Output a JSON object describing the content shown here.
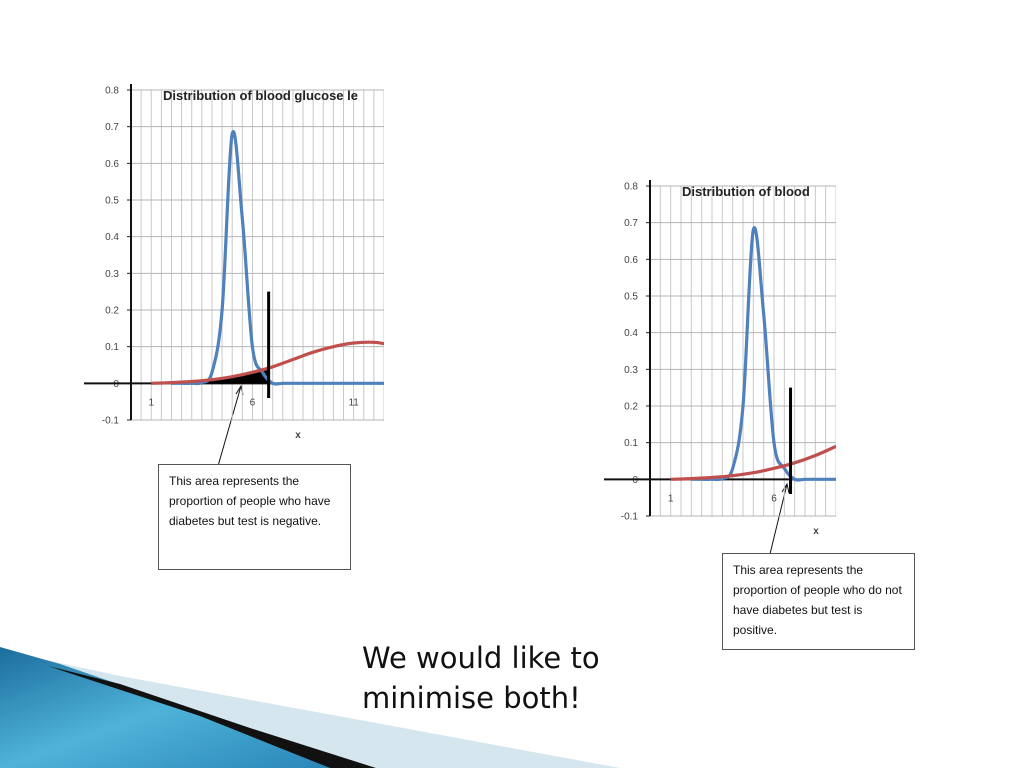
{
  "slide": {
    "text": "We would like to minimise both!"
  },
  "callouts": {
    "left": "This area represents the proportion of people who have diabetes but test is negative.",
    "right": "This area represents the proportion of people who do not have diabetes but test is positive."
  },
  "chart_data": [
    {
      "type": "line",
      "title": "Distribution of blood glucose le",
      "xlabel": "x",
      "ylabel": "",
      "xlim": [
        0,
        12.5
      ],
      "ylim": [
        -0.1,
        0.8
      ],
      "yticks": [
        -0.1,
        0,
        0.1,
        0.2,
        0.3,
        0.4,
        0.5,
        0.6,
        0.7,
        0.8
      ],
      "ytick_labels": [
        "-0.1",
        "0",
        "0.1",
        "0.2",
        "0.3",
        "0.4",
        "0.5",
        "0.6",
        "0.7",
        "0.8"
      ],
      "xticks": [
        1,
        6,
        11
      ],
      "xtick_labels": [
        "1",
        "6",
        "11"
      ],
      "grid": true,
      "threshold": 6.8,
      "shaded_region": "area under red curve left of threshold",
      "series": [
        {
          "color": "#4f81bd",
          "x": [
            2,
            2.5,
            3,
            3.5,
            4,
            4.5,
            5,
            5.5,
            6,
            6.5,
            7,
            7.5,
            8,
            10,
            12.5
          ],
          "y": [
            0,
            0,
            0,
            0.002,
            0.03,
            0.2,
            0.68,
            0.45,
            0.1,
            0.03,
            0,
            0,
            0,
            0,
            0
          ]
        },
        {
          "color": "#c0504d",
          "x": [
            1,
            2,
            3,
            4,
            5,
            6,
            7,
            8,
            9,
            10,
            11,
            12,
            12.5
          ],
          "y": [
            0,
            0.002,
            0.005,
            0.01,
            0.018,
            0.03,
            0.045,
            0.065,
            0.085,
            0.1,
            0.11,
            0.112,
            0.108
          ]
        }
      ]
    },
    {
      "type": "line",
      "title": "Distribution of blood",
      "xlabel": "x",
      "ylabel": "",
      "xlim": [
        0,
        9
      ],
      "ylim": [
        -0.1,
        0.8
      ],
      "yticks": [
        -0.1,
        0,
        0.1,
        0.2,
        0.3,
        0.4,
        0.5,
        0.6,
        0.7,
        0.8
      ],
      "ytick_labels": [
        "-0.1",
        "0",
        "0.1",
        "0.2",
        "0.3",
        "0.4",
        "0.5",
        "0.6",
        "0.7",
        "0.8"
      ],
      "xticks": [
        1,
        6
      ],
      "xtick_labels": [
        "1",
        "6"
      ],
      "grid": true,
      "threshold": 6.8,
      "shaded_region": "area under blue curve right of threshold",
      "series": [
        {
          "color": "#4f81bd",
          "x": [
            2,
            2.5,
            3,
            3.5,
            4,
            4.5,
            5,
            5.5,
            6,
            6.5,
            7,
            7.5,
            8,
            9
          ],
          "y": [
            0,
            0,
            0,
            0.002,
            0.03,
            0.2,
            0.68,
            0.45,
            0.1,
            0.03,
            0,
            0,
            0,
            0
          ]
        },
        {
          "color": "#c0504d",
          "x": [
            1,
            2,
            3,
            4,
            5,
            6,
            7,
            8,
            9
          ],
          "y": [
            0,
            0.002,
            0.005,
            0.01,
            0.018,
            0.03,
            0.045,
            0.065,
            0.09
          ]
        }
      ]
    }
  ]
}
